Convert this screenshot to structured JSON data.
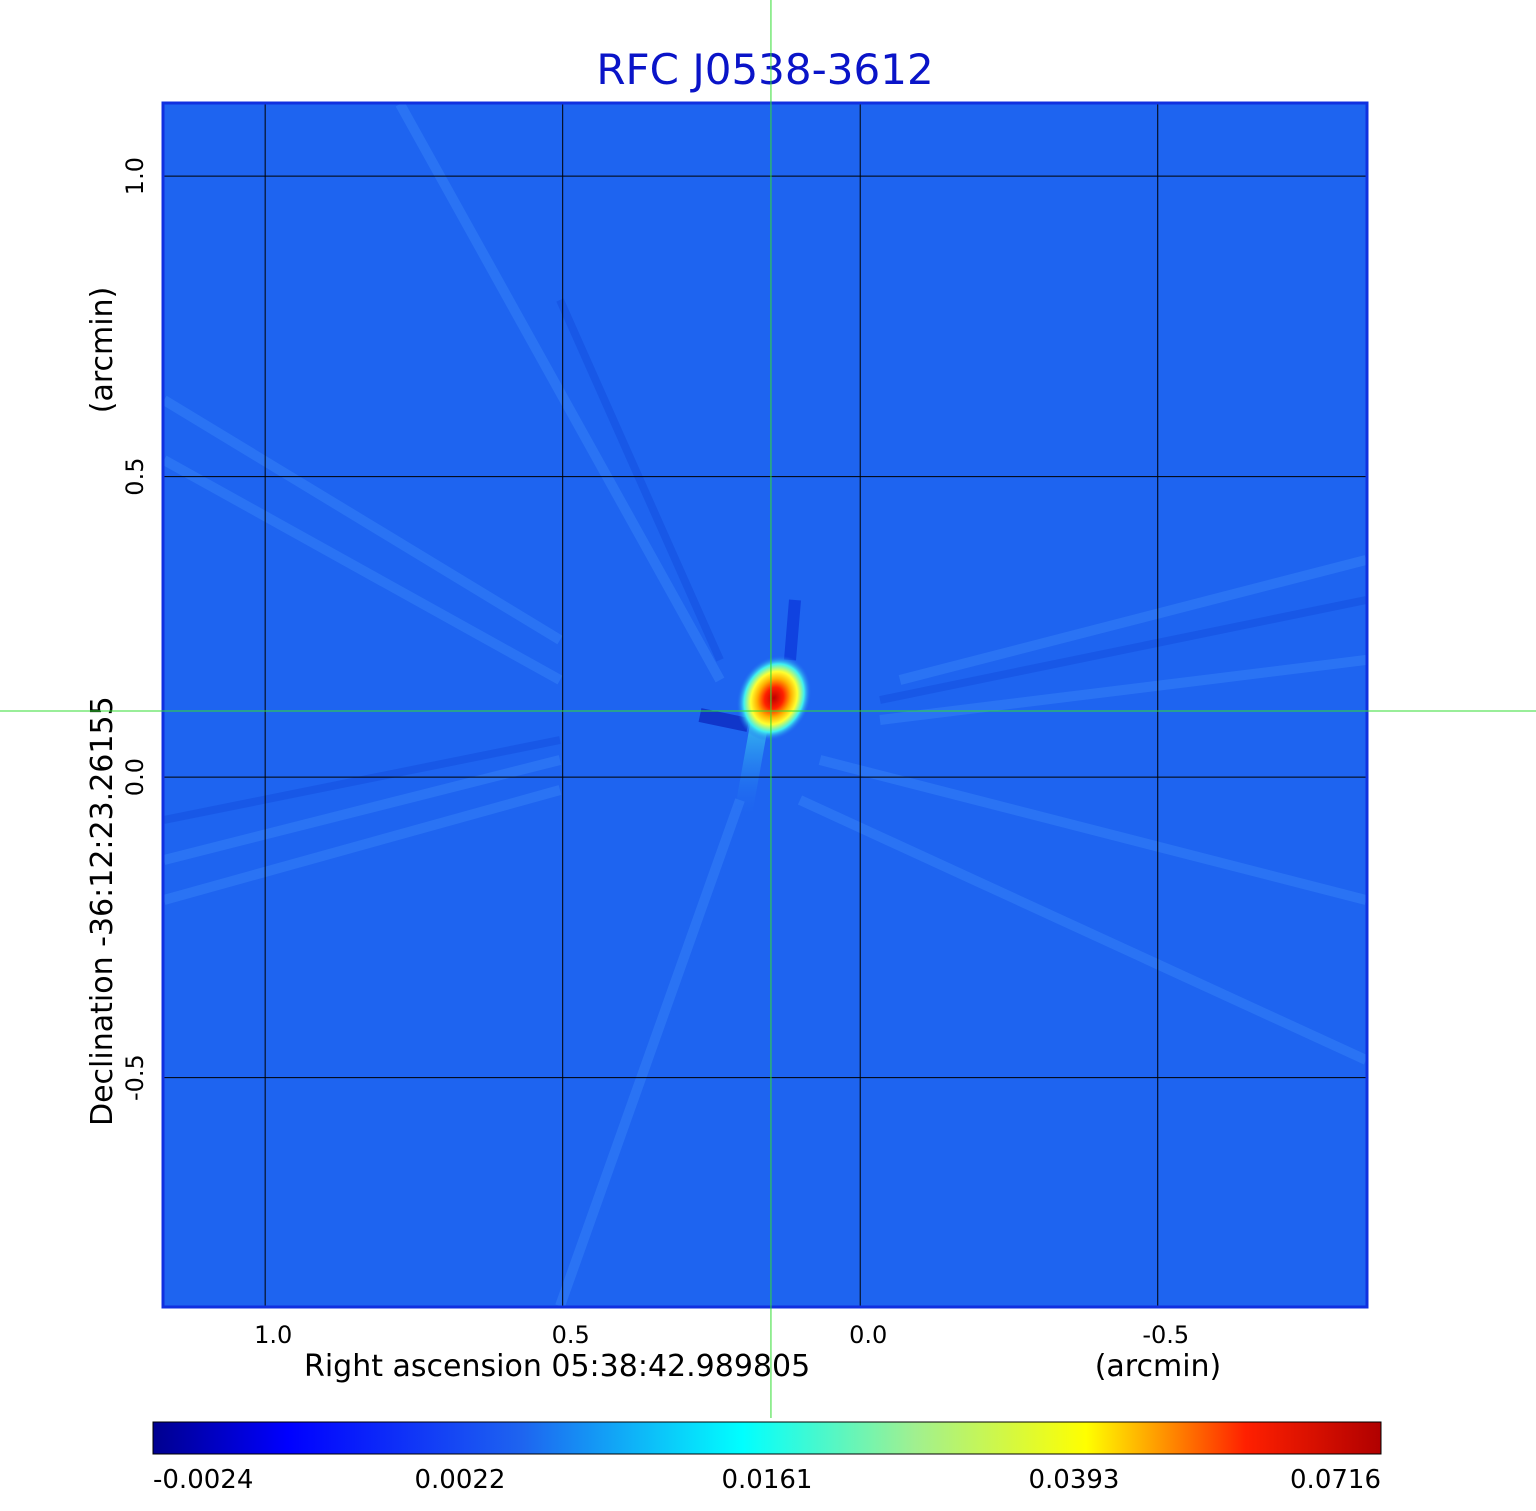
{
  "chart_data": {
    "type": "heatmap",
    "title": "RFC J0538-3612",
    "xlabel": "Right ascension  05:38:42.989805",
    "xunit": "(arcmin)",
    "ylabel": "Declination  -36:12:23.26155",
    "yunit": "(arcmin)",
    "xlim": [
      1.17,
      -0.85
    ],
    "ylim": [
      -0.88,
      1.12
    ],
    "xticks": [
      {
        "value": 1.0,
        "label": "1.0"
      },
      {
        "value": 0.5,
        "label": "0.5"
      },
      {
        "value": 0.0,
        "label": "0.0"
      },
      {
        "value": -0.5,
        "label": "-0.5"
      }
    ],
    "yticks": [
      {
        "value": 1.0,
        "label": "1.0"
      },
      {
        "value": 0.5,
        "label": "0.5"
      },
      {
        "value": 0.0,
        "label": "0.0"
      },
      {
        "value": -0.5,
        "label": "-0.5"
      }
    ],
    "grid": true,
    "crosshair": {
      "x": 0.15,
      "y": 0.11,
      "color": "#33dd33"
    },
    "source_peak": {
      "x": 0.14,
      "y": 0.12,
      "value": 0.0716
    },
    "colormap": "jet",
    "colorbar": {
      "placement": "bottom",
      "labels": [
        "-0.0024",
        "0.0022",
        "0.0161",
        "0.0393",
        "0.0716"
      ]
    },
    "colors": {
      "title": "#0a14c8",
      "frame": "#1030e0",
      "background_map": "#1e64f0"
    }
  }
}
